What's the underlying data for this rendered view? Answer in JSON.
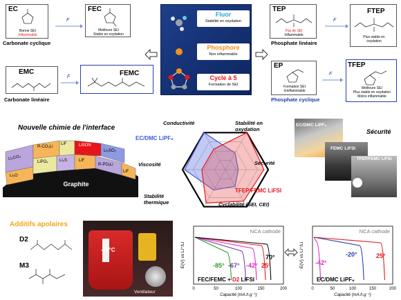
{
  "top": {
    "ec": {
      "name": "EC",
      "note1": "Bonne SEI",
      "note2": "Inflammable",
      "caption": "Carbonate cyclique"
    },
    "fec": {
      "name": "FEC",
      "note1": "Meilleure SEI",
      "note2": "Stable en oxydation"
    },
    "emc": {
      "name": "EMC",
      "caption": "Carbonate linéaire"
    },
    "femc": {
      "name": "FEMC"
    },
    "f_arrow": "F",
    "center_panel": {
      "fluor": "Fluor",
      "fluor_sub": "Stabilité en oxydation",
      "phosphore": "Phosphore",
      "phosphore_sub": "Non inflammable",
      "cycle": "Cycle à 5",
      "cycle_sub": "Formation de SEI"
    },
    "tep": {
      "name": "TEP",
      "note1": "Pas de SEI",
      "note2": "Inflammable",
      "caption": "Phosphate linéaire"
    },
    "ftep": {
      "name": "FTEP",
      "note1": "Plus stable en",
      "note2": "oxydation"
    },
    "ep": {
      "name": "EP",
      "note1": "Formation SEI",
      "note2": "Ininflammable",
      "caption": "Phosphate cyclique"
    },
    "tfep": {
      "name": "TFEP",
      "note1": "Meilleure SEI",
      "note2": "Plus stable en oxydation",
      "note3": "Moins inflammable"
    }
  },
  "middle": {
    "title": "Nouvelle chimie de l'interface",
    "layers": [
      "Li₂CO₃",
      "R-CO₃Li",
      "LiF",
      "LiSON",
      "Li₂SO₃",
      "Li₂O",
      "LiPOₓ",
      "Li₂S",
      "LiF",
      "R-POₓLi",
      "LiF"
    ],
    "graphite": "Graphite",
    "radar": {
      "axes": [
        "Conductivité",
        "Stabilité en oxydation",
        "Sécurité",
        "Cyclabilité (SEI, CEI)",
        "Stabilité thermique",
        "Viscosité"
      ],
      "series": [
        {
          "name": "EC/DMC LiPF₆",
          "color": "#3b5bd6"
        },
        {
          "name": "TFEP/FEMC LiFSI",
          "color": "#e8141b"
        }
      ]
    },
    "security": {
      "title": "Sécurité",
      "labels": [
        "EC/DMC LiPF₆",
        "FEMC LiFSI",
        "TFEP/FEMC LiFSI"
      ]
    }
  },
  "bottom": {
    "title": "Additifs apolaires",
    "d2": "D2",
    "m3": "M3",
    "photo": {
      "temp": "-95°C",
      "fan": "Ventilateur"
    },
    "chart1": {
      "title": "NCA cathode",
      "ylabel": "E(V) vs Li⁺/Li",
      "xlabel": "Capacité (mA.h.g⁻¹)",
      "legend_a": "FEC/FEMC + ",
      "legend_b": "D2",
      "legend_c": " LiFSI",
      "temps": [
        {
          "label": "-85°",
          "color": "#2d9a2d"
        },
        {
          "label": "-67°",
          "color": "#6a3d9a"
        },
        {
          "label": "-42°",
          "color": "#e020c8"
        },
        {
          "label": "25°",
          "color": "#e8141b"
        },
        {
          "label": "70°",
          "color": "#000000"
        }
      ],
      "xticks": [
        "0",
        "50",
        "100",
        "150",
        "200"
      ]
    },
    "chart2": {
      "title": "NCA cathode",
      "ylabel": "E(V) vs Li⁺/Li",
      "xlabel": "Capacité (mA.h.g⁻¹)",
      "legend": "EC/DMC LiPF₆",
      "temps": [
        {
          "label": "-42°",
          "color": "#e020c8"
        },
        {
          "label": "-20°",
          "color": "#1f3aa8"
        },
        {
          "label": "25°",
          "color": "#e8141b"
        }
      ],
      "xticks": [
        "0",
        "50",
        "100",
        "150",
        "200"
      ]
    }
  }
}
